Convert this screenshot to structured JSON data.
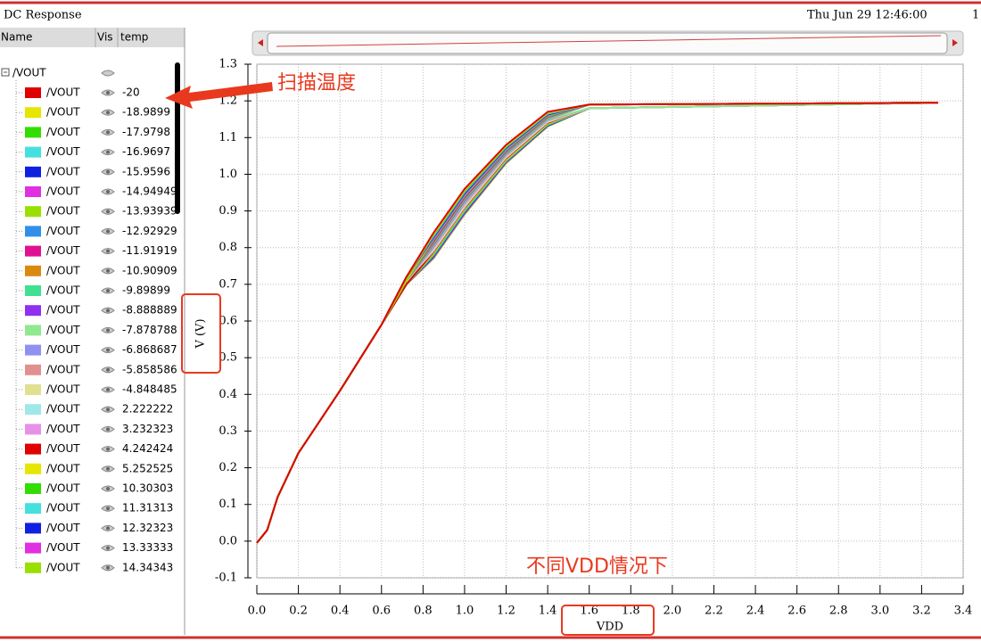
{
  "window": {
    "title": "DC Response",
    "date": "Thu Jun 29 12:46:00",
    "page": "1"
  },
  "browser": {
    "columns": [
      "Name",
      "Vis",
      "temp"
    ],
    "root": "/VOUT"
  },
  "annotations": {
    "sweep": "扫描温度",
    "vdd": "不同VDD情况下"
  },
  "chart_data": {
    "type": "line",
    "x_label": "VDD",
    "y_label": "V (V)",
    "x": [
      0,
      0.05,
      0.1,
      0.2,
      0.4,
      0.6,
      0.72,
      0.85,
      1.0,
      1.2,
      1.4,
      1.6,
      3.28
    ],
    "xlim": [
      0,
      3.4
    ],
    "ylim": [
      -0.1,
      1.3
    ],
    "grid": true,
    "xticks": [
      {
        "value": 0,
        "label": "0.0"
      },
      0.2,
      0.4,
      0.6,
      0.8,
      {
        "value": 1,
        "label": "1.0"
      },
      1.2,
      1.4,
      1.6,
      1.8,
      {
        "value": 2,
        "label": "2.0"
      },
      2.2,
      2.4,
      2.6,
      2.8,
      {
        "value": 3,
        "label": "3.0"
      },
      3.2,
      3.4
    ],
    "yticks": [
      -0.1,
      {
        "value": 0,
        "label": "0.0"
      },
      0.1,
      0.2,
      0.3,
      0.4,
      0.5,
      0.6,
      0.7,
      0.8,
      0.9,
      {
        "value": 1,
        "label": "1.0"
      },
      1.1,
      1.2,
      1.3
    ],
    "series": [
      {
        "name": "/VOUT",
        "temp": -20,
        "color": "#e00000",
        "values": [
          -0.005,
          0.03,
          0.12,
          0.24,
          0.41,
          0.59,
          0.72,
          0.84,
          0.96,
          1.08,
          1.17,
          1.19,
          1.195
        ]
      },
      {
        "name": "/VOUT",
        "temp": -18.9899,
        "color": "#e6e600",
        "values": [
          -0.005,
          0.03,
          0.12,
          0.24,
          0.41,
          0.59,
          0.72,
          0.837,
          0.957,
          1.078,
          1.168,
          1.19,
          1.195
        ]
      },
      {
        "name": "/VOUT",
        "temp": -17.9798,
        "color": "#33dd00",
        "values": [
          -0.005,
          0.03,
          0.12,
          0.24,
          0.41,
          0.59,
          0.72,
          0.834,
          0.954,
          1.076,
          1.167,
          1.19,
          1.195
        ]
      },
      {
        "name": "/VOUT",
        "temp": -16.9697,
        "color": "#44e0e0",
        "values": [
          -0.005,
          0.03,
          0.12,
          0.24,
          0.41,
          0.59,
          0.72,
          0.831,
          0.951,
          1.074,
          1.165,
          1.19,
          1.195
        ]
      },
      {
        "name": "/VOUT",
        "temp": -15.9596,
        "color": "#1020e0",
        "values": [
          -0.005,
          0.03,
          0.12,
          0.24,
          0.41,
          0.59,
          0.72,
          0.828,
          0.948,
          1.072,
          1.163,
          1.19,
          1.195
        ]
      },
      {
        "name": "/VOUT",
        "temp": -14.94949,
        "color": "#e030e0",
        "values": [
          -0.005,
          0.03,
          0.12,
          0.24,
          0.41,
          0.59,
          0.72,
          0.825,
          0.945,
          1.07,
          1.162,
          1.19,
          1.195
        ]
      },
      {
        "name": "/VOUT",
        "temp": -13.93939,
        "color": "#99e000",
        "values": [
          -0.005,
          0.03,
          0.12,
          0.24,
          0.41,
          0.59,
          0.71,
          0.823,
          0.943,
          1.068,
          1.16,
          1.19,
          1.195
        ]
      },
      {
        "name": "/VOUT",
        "temp": -12.92929,
        "color": "#3090e8",
        "values": [
          -0.005,
          0.03,
          0.12,
          0.24,
          0.41,
          0.59,
          0.71,
          0.82,
          0.94,
          1.065,
          1.158,
          1.19,
          1.195
        ]
      },
      {
        "name": "/VOUT",
        "temp": -11.91919,
        "color": "#e01090",
        "values": [
          -0.005,
          0.03,
          0.12,
          0.24,
          0.41,
          0.59,
          0.71,
          0.817,
          0.937,
          1.063,
          1.157,
          1.19,
          1.195
        ]
      },
      {
        "name": "/VOUT",
        "temp": -10.90909,
        "color": "#d98a10",
        "values": [
          -0.005,
          0.03,
          0.12,
          0.24,
          0.41,
          0.59,
          0.71,
          0.814,
          0.934,
          1.061,
          1.155,
          1.19,
          1.195
        ]
      },
      {
        "name": "/VOUT",
        "temp": -9.89899,
        "color": "#40e090",
        "values": [
          -0.005,
          0.03,
          0.12,
          0.24,
          0.41,
          0.59,
          0.71,
          0.811,
          0.931,
          1.059,
          1.153,
          1.19,
          1.195
        ]
      },
      {
        "name": "/VOUT",
        "temp": -8.888889,
        "color": "#9030f0",
        "values": [
          -0.005,
          0.03,
          0.12,
          0.24,
          0.41,
          0.59,
          0.71,
          0.808,
          0.928,
          1.057,
          1.152,
          1.19,
          1.195
        ]
      },
      {
        "name": "/VOUT",
        "temp": -7.878788,
        "color": "#90e890",
        "values": [
          -0.005,
          0.03,
          0.12,
          0.24,
          0.41,
          0.59,
          0.71,
          0.805,
          0.925,
          1.055,
          1.15,
          1.18,
          1.195
        ]
      },
      {
        "name": "/VOUT",
        "temp": -6.868687,
        "color": "#9090f0",
        "values": [
          -0.005,
          0.03,
          0.12,
          0.24,
          0.41,
          0.59,
          0.71,
          0.802,
          0.922,
          1.053,
          1.148,
          1.18,
          1.195
        ]
      },
      {
        "name": "/VOUT",
        "temp": -5.858586,
        "color": "#e09090",
        "values": [
          -0.005,
          0.03,
          0.12,
          0.24,
          0.41,
          0.59,
          0.71,
          0.799,
          0.919,
          1.051,
          1.147,
          1.18,
          1.195
        ]
      },
      {
        "name": "/VOUT",
        "temp": -4.848485,
        "color": "#e0e090",
        "values": [
          -0.005,
          0.03,
          0.12,
          0.24,
          0.41,
          0.59,
          0.71,
          0.796,
          0.916,
          1.049,
          1.145,
          1.18,
          1.195
        ]
      },
      {
        "name": "/VOUT",
        "temp": 2.222222,
        "color": "#a0e8e8",
        "values": [
          -0.005,
          0.03,
          0.12,
          0.24,
          0.41,
          0.59,
          0.71,
          0.793,
          0.913,
          1.047,
          1.143,
          1.18,
          1.195
        ]
      },
      {
        "name": "/VOUT",
        "temp": 3.232323,
        "color": "#e890e8",
        "values": [
          -0.005,
          0.03,
          0.12,
          0.24,
          0.41,
          0.59,
          0.71,
          0.79,
          0.91,
          1.045,
          1.142,
          1.18,
          1.195
        ]
      },
      {
        "name": "/VOUT",
        "temp": 4.242424,
        "color": "#e00000",
        "values": [
          -0.005,
          0.03,
          0.12,
          0.24,
          0.41,
          0.59,
          0.7,
          0.788,
          0.908,
          1.043,
          1.14,
          1.18,
          1.195
        ]
      },
      {
        "name": "/VOUT",
        "temp": 5.252525,
        "color": "#e6e600",
        "values": [
          -0.005,
          0.03,
          0.12,
          0.24,
          0.41,
          0.59,
          0.7,
          0.785,
          0.905,
          1.04,
          1.138,
          1.18,
          1.195
        ]
      },
      {
        "name": "/VOUT",
        "temp": 10.30303,
        "color": "#33dd00",
        "values": [
          -0.005,
          0.03,
          0.12,
          0.24,
          0.41,
          0.59,
          0.7,
          0.782,
          0.902,
          1.038,
          1.137,
          1.18,
          1.195
        ]
      },
      {
        "name": "/VOUT",
        "temp": 11.31313,
        "color": "#44e0e0",
        "values": [
          -0.005,
          0.03,
          0.12,
          0.24,
          0.41,
          0.59,
          0.7,
          0.779,
          0.899,
          1.036,
          1.135,
          1.18,
          1.195
        ]
      },
      {
        "name": "/VOUT",
        "temp": 12.32323,
        "color": "#1020e0",
        "values": [
          -0.005,
          0.03,
          0.12,
          0.24,
          0.41,
          0.59,
          0.7,
          0.776,
          0.896,
          1.034,
          1.133,
          1.18,
          1.195
        ]
      },
      {
        "name": "/VOUT",
        "temp": 13.33333,
        "color": "#e030e0",
        "values": [
          -0.005,
          0.03,
          0.12,
          0.24,
          0.41,
          0.59,
          0.7,
          0.773,
          0.893,
          1.032,
          1.132,
          1.18,
          1.195
        ]
      },
      {
        "name": "/VOUT",
        "temp": 14.34343,
        "color": "#99e000",
        "values": [
          -0.005,
          0.03,
          0.12,
          0.24,
          0.41,
          0.59,
          0.7,
          0.77,
          0.89,
          1.03,
          1.13,
          1.18,
          1.195
        ]
      }
    ]
  }
}
